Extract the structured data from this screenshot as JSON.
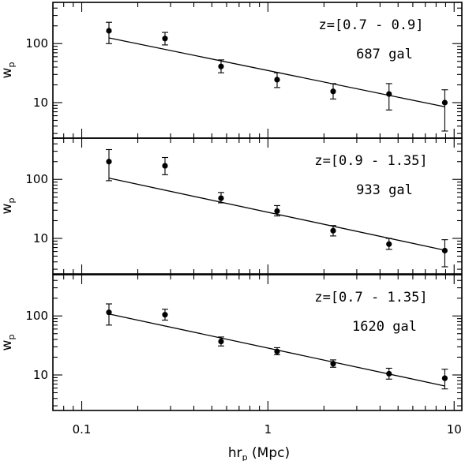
{
  "chart_data": {
    "type": "scatter",
    "x_scale": "log",
    "y_scale": "log",
    "xlim": [
      0.07,
      11
    ],
    "ylim": [
      2.5,
      500
    ],
    "xlabel": "hr",
    "xlabel_sub": "p",
    "xlabel_unit": "(Mpc)",
    "ylabel": "w",
    "ylabel_sub": "p",
    "x_ticks": [
      0.1,
      1,
      10
    ],
    "x_tick_labels": [
      "0.1",
      "1",
      "10"
    ],
    "y_ticks": [
      10,
      100
    ],
    "y_tick_labels": [
      "10",
      "100"
    ],
    "panels": [
      {
        "redshift_label": "z=[0.7 - 0.9]",
        "count_label": "687 gal",
        "points": [
          {
            "x": 0.14,
            "y": 165,
            "lo": 100,
            "hi": 230
          },
          {
            "x": 0.28,
            "y": 122,
            "lo": 95,
            "hi": 155
          },
          {
            "x": 0.56,
            "y": 41,
            "lo": 32,
            "hi": 53
          },
          {
            "x": 1.12,
            "y": 24.5,
            "lo": 18,
            "hi": 32
          },
          {
            "x": 2.24,
            "y": 15.5,
            "lo": 11.5,
            "hi": 21
          },
          {
            "x": 4.47,
            "y": 14,
            "lo": 7.5,
            "hi": 21
          },
          {
            "x": 8.91,
            "y": 10,
            "lo": 3.3,
            "hi": 16.5
          }
        ],
        "fit": {
          "x": [
            0.14,
            8.91
          ],
          "y": [
            125,
            8.5
          ]
        }
      },
      {
        "redshift_label": "z=[0.9 - 1.35]",
        "count_label": "933 gal",
        "points": [
          {
            "x": 0.14,
            "y": 200,
            "lo": 95,
            "hi": 320
          },
          {
            "x": 0.28,
            "y": 170,
            "lo": 120,
            "hi": 235
          },
          {
            "x": 0.56,
            "y": 48,
            "lo": 40,
            "hi": 60
          },
          {
            "x": 1.12,
            "y": 29,
            "lo": 24,
            "hi": 36
          },
          {
            "x": 2.24,
            "y": 13.5,
            "lo": 11,
            "hi": 16.5
          },
          {
            "x": 4.47,
            "y": 8,
            "lo": 6.5,
            "hi": 10
          },
          {
            "x": 8.91,
            "y": 6.2,
            "lo": 3.3,
            "hi": 9.5
          }
        ],
        "fit": {
          "x": [
            0.14,
            8.91
          ],
          "y": [
            105,
            6.3
          ]
        }
      },
      {
        "redshift_label": "z=[0.7 - 1.35]",
        "count_label": "1620 gal",
        "points": [
          {
            "x": 0.14,
            "y": 115,
            "lo": 70,
            "hi": 160
          },
          {
            "x": 0.28,
            "y": 105,
            "lo": 85,
            "hi": 130
          },
          {
            "x": 0.56,
            "y": 37,
            "lo": 31,
            "hi": 44
          },
          {
            "x": 1.12,
            "y": 25,
            "lo": 22,
            "hi": 29
          },
          {
            "x": 2.24,
            "y": 15.5,
            "lo": 13.5,
            "hi": 18
          },
          {
            "x": 4.47,
            "y": 10.5,
            "lo": 8.5,
            "hi": 13
          },
          {
            "x": 8.91,
            "y": 8.8,
            "lo": 5.8,
            "hi": 12.5
          }
        ],
        "fit": {
          "x": [
            0.14,
            8.91
          ],
          "y": [
            108,
            6.5
          ]
        }
      }
    ]
  }
}
